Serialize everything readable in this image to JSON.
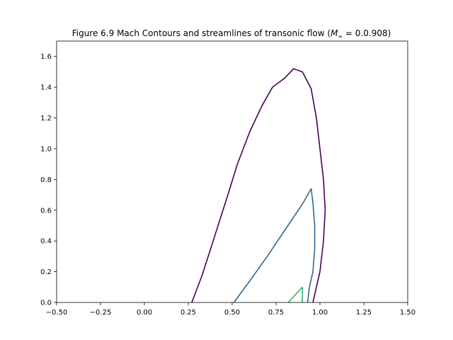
{
  "chart_data": {
    "type": "contour",
    "title": "Figure 6.9 Mach Contours and streamlines of transonic flow (",
    "title_math": "M",
    "title_math_sub": "∞",
    "title_end": " = 0.0.908)",
    "xlim": [
      -0.5,
      1.5
    ],
    "ylim": [
      0.0,
      1.7
    ],
    "x_ticks": [
      -0.5,
      -0.25,
      0.0,
      0.25,
      0.5,
      0.75,
      1.0,
      1.25,
      1.5
    ],
    "x_tick_labels": [
      "−0.50",
      "−0.25",
      "0.00",
      "0.25",
      "0.50",
      "0.75",
      "1.00",
      "1.25",
      "1.50"
    ],
    "y_ticks": [
      0.0,
      0.2,
      0.4,
      0.6,
      0.8,
      1.0,
      1.2,
      1.4,
      1.6
    ],
    "y_tick_labels": [
      "0.0",
      "0.2",
      "0.4",
      "0.6",
      "0.8",
      "1.0",
      "1.2",
      "1.4",
      "1.6"
    ],
    "grid": false,
    "series": [
      {
        "color": "#440154",
        "points": [
          [
            0.27,
            0.0
          ],
          [
            0.33,
            0.18
          ],
          [
            0.4,
            0.43
          ],
          [
            0.47,
            0.68
          ],
          [
            0.53,
            0.9
          ],
          [
            0.6,
            1.11
          ],
          [
            0.67,
            1.28
          ],
          [
            0.73,
            1.4
          ],
          [
            0.8,
            1.46
          ],
          [
            0.85,
            1.52
          ],
          [
            0.9,
            1.5
          ],
          [
            0.95,
            1.39
          ],
          [
            0.98,
            1.2
          ],
          [
            1.0,
            1.0
          ],
          [
            1.02,
            0.8
          ],
          [
            1.03,
            0.6
          ],
          [
            1.02,
            0.4
          ],
          [
            1.0,
            0.2
          ],
          [
            0.96,
            0.0
          ]
        ]
      },
      {
        "color": "#31688e",
        "points": [
          [
            0.51,
            0.0
          ],
          [
            0.6,
            0.14
          ],
          [
            0.7,
            0.3
          ],
          [
            0.8,
            0.47
          ],
          [
            0.9,
            0.64
          ],
          [
            0.95,
            0.74
          ],
          [
            0.96,
            0.65
          ],
          [
            0.97,
            0.5
          ],
          [
            0.97,
            0.35
          ],
          [
            0.96,
            0.2
          ],
          [
            0.94,
            0.1
          ],
          [
            0.93,
            0.0
          ]
        ]
      },
      {
        "color": "#35b779",
        "points": [
          [
            0.82,
            0.0
          ],
          [
            0.86,
            0.05
          ],
          [
            0.9,
            0.1
          ],
          [
            0.9,
            0.05
          ],
          [
            0.9,
            0.0
          ]
        ]
      }
    ]
  }
}
